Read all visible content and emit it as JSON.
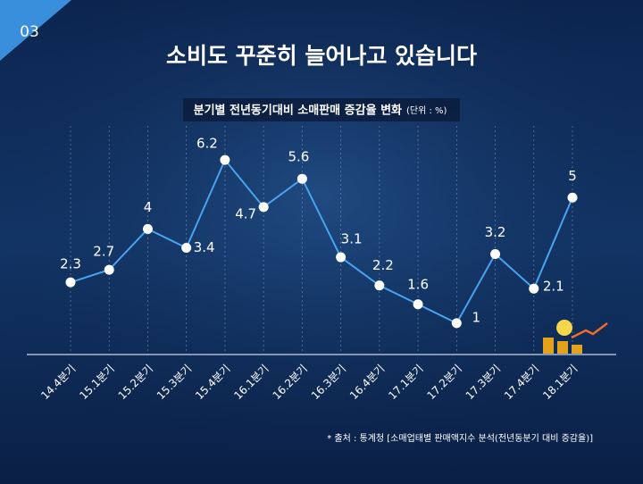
{
  "page_number": "03",
  "chart_data": {
    "type": "line",
    "title": "소비도 꾸준히 늘어나고 있습니다",
    "subtitle": "분기별 전년동기대비 소매판매 증감율 변화",
    "unit": "(단위 : %)",
    "source": "* 출처 : 통계청 [소매업태별 판매액지수 분석(전년동분기 대비 증감율)]",
    "categories": [
      "14.4분기",
      "15.1분기",
      "15.2분기",
      "15.3분기",
      "15.4분기",
      "16.1분기",
      "16.2분기",
      "16.3분기",
      "16.4분기",
      "17.1분기",
      "17.2분기",
      "17.3분기",
      "17.4분기",
      "18.1분기"
    ],
    "values": [
      2.3,
      2.7,
      4,
      3.4,
      6.2,
      4.7,
      5.6,
      3.1,
      2.2,
      1.6,
      1,
      3.2,
      2.1,
      5
    ],
    "color": "#4aa3ee",
    "ylim": [
      0,
      7
    ]
  }
}
